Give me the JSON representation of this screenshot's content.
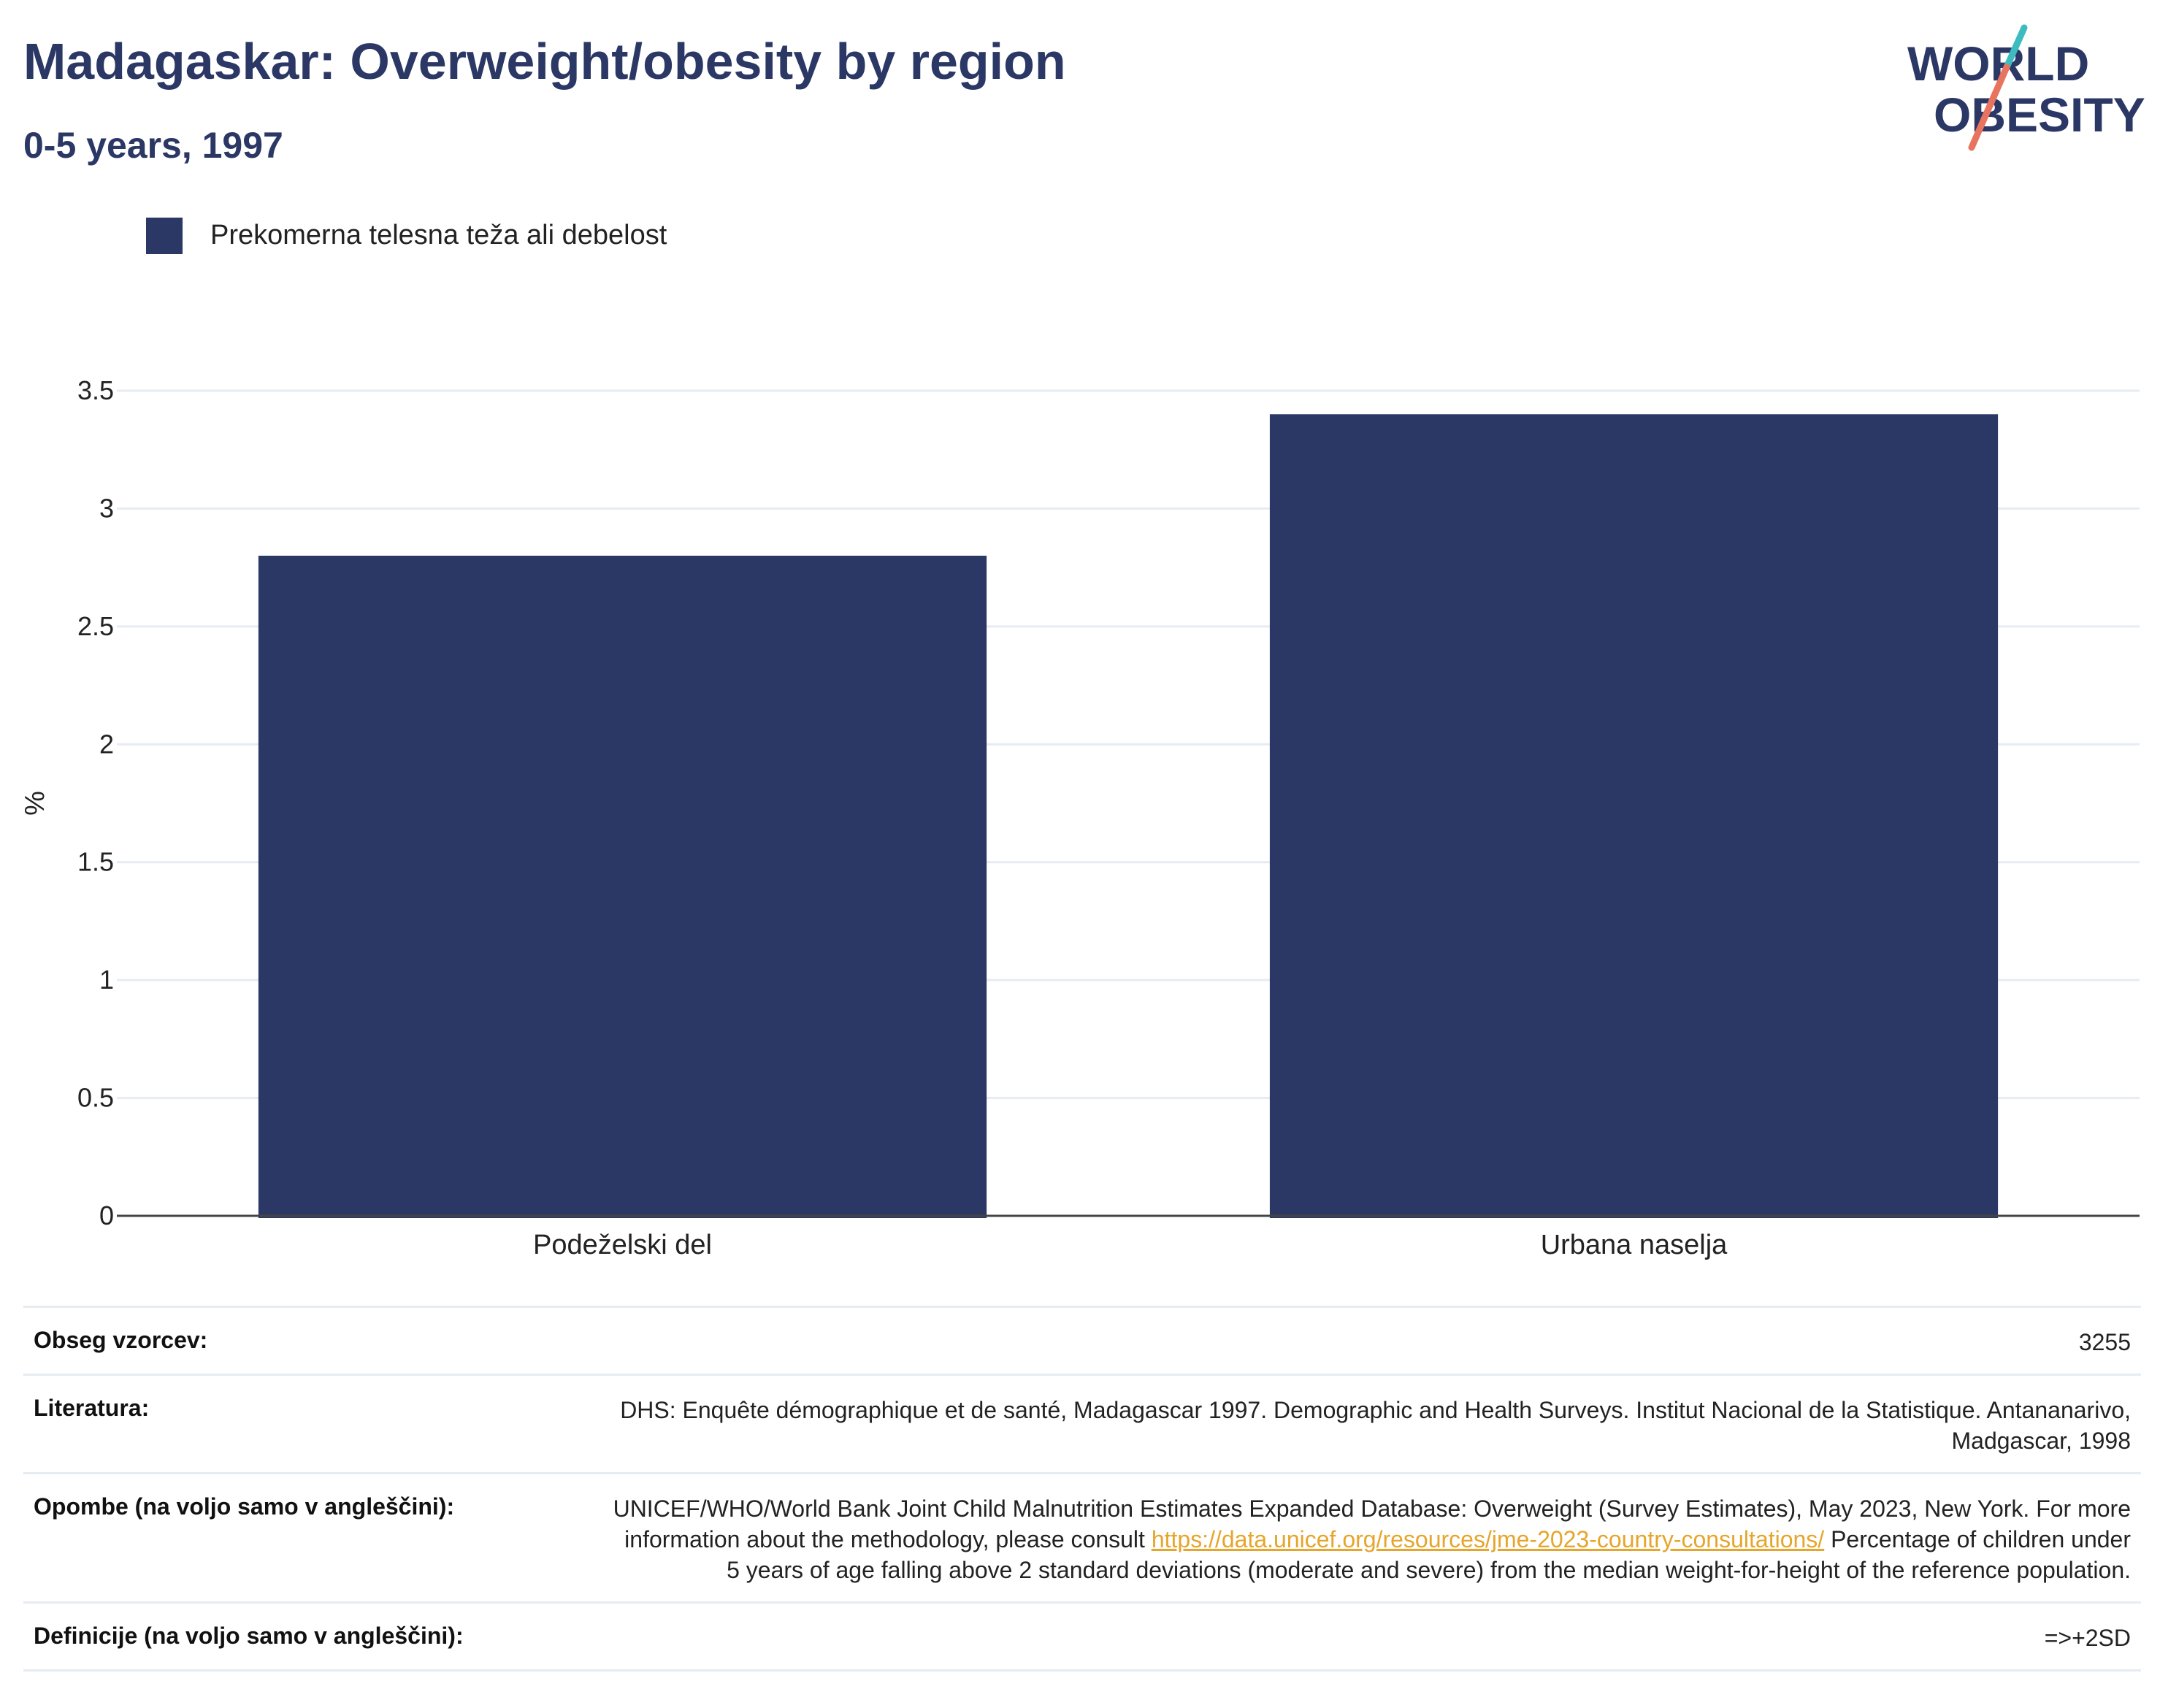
{
  "title": "Madagaskar: Overweight/obesity by region",
  "subtitle": "0-5 years, 1997",
  "logo": {
    "line1": "WORLD",
    "line2": "OBESITY"
  },
  "colors": {
    "bar": "#2b3764",
    "title": "#2b3764",
    "link": "#e6a52b",
    "grid": "#e6ecf1",
    "logo_teal": "#3cbcc0",
    "logo_coral": "#e8735f"
  },
  "legend": {
    "label": "Prekomerna telesna teža ali debelost"
  },
  "chart_data": {
    "type": "bar",
    "categories": [
      "Podeželski del",
      "Urbana naselja"
    ],
    "series": [
      {
        "name": "Prekomerna telesna teža ali debelost",
        "values": [
          2.8,
          3.4
        ]
      }
    ],
    "ylabel": "%",
    "xlabel": "",
    "ylim": [
      0,
      3.5
    ],
    "yticks": [
      0,
      0.5,
      1,
      1.5,
      2,
      2.5,
      3,
      3.5
    ],
    "ytick_labels": [
      "0",
      "0.5",
      "1",
      "1.5",
      "2",
      "2.5",
      "3",
      "3.5"
    ],
    "grid": true,
    "legend_position": "top-left"
  },
  "meta": {
    "sample_label": "Obseg vzorcev:",
    "sample_value": "3255",
    "literature_label": "Literatura:",
    "literature_value": "DHS: Enquête démographique et de santé, Madagascar 1997. Demographic and Health Surveys. Institut Nacional de la Statistique. Antananarivo, Madgascar, 1998",
    "notes_label": "Opombe (na voljo samo v angleščini):",
    "notes_before": "UNICEF/WHO/World Bank Joint Child Malnutrition Estimates Expanded Database: Overweight (Survey Estimates), May 2023, New York. For more information about the methodology, please consult ",
    "notes_link": "https://data.unicef.org/resources/jme-2023-country-consultations/",
    "notes_after": " Percentage of children under 5 years of age falling above 2 standard deviations (moderate and severe) from the median weight-for-height of the reference population.",
    "definitions_label": "Definicije (na voljo samo v angleščini):",
    "definitions_value": "=>+2SD"
  }
}
